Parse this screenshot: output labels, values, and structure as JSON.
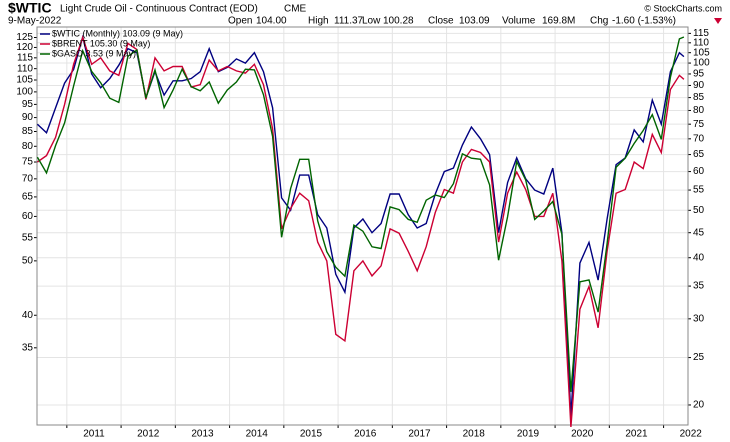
{
  "chart_data": {
    "type": "line",
    "symbol": "$WTIC",
    "title": "Light Crude Oil - Continuous Contract (EOD)",
    "exchange": "CME",
    "date": "9-May-2022",
    "copyright": "© StockCharts.com",
    "quote": [
      {
        "label": "Open",
        "value": "104.00"
      },
      {
        "label": "High",
        "value": "111.37"
      },
      {
        "label": "Low",
        "value": "100.28"
      },
      {
        "label": "Close",
        "value": "103.09"
      },
      {
        "label": "Volume",
        "value": "169.8M"
      },
      {
        "label": "Chg",
        "value": "-1.60 (-1.53%)"
      }
    ],
    "log_scale": true,
    "grid": true,
    "xlim": [
      2010.45,
      2022.45
    ],
    "xticks": [
      2011,
      2012,
      2013,
      2014,
      2015,
      2016,
      2017,
      2018,
      2019,
      2020,
      2021,
      2022
    ],
    "ylim": [
      25.5,
      130.5
    ],
    "yticks": [
      35,
      40,
      50,
      55,
      60,
      65,
      70,
      75,
      80,
      85,
      90,
      95,
      100,
      105,
      110,
      115,
      120,
      125
    ],
    "y2lim": [
      18.2,
      118.5
    ],
    "y2ticks": [
      20,
      25,
      30,
      35,
      40,
      45,
      50,
      55,
      60,
      65,
      70,
      75,
      80,
      85,
      90,
      95,
      100,
      105,
      110,
      115
    ],
    "y3lim": [
      0.63,
      3.69
    ],
    "x": [
      2010.458,
      2010.625,
      2010.792,
      2010.958,
      2011.125,
      2011.292,
      2011.458,
      2011.625,
      2011.792,
      2011.958,
      2012.125,
      2012.292,
      2012.458,
      2012.625,
      2012.792,
      2012.958,
      2013.125,
      2013.292,
      2013.458,
      2013.625,
      2013.792,
      2013.958,
      2014.125,
      2014.292,
      2014.458,
      2014.625,
      2014.792,
      2014.958,
      2015.125,
      2015.292,
      2015.458,
      2015.625,
      2015.792,
      2015.958,
      2016.125,
      2016.292,
      2016.458,
      2016.625,
      2016.792,
      2016.958,
      2017.125,
      2017.292,
      2017.458,
      2017.625,
      2017.792,
      2017.958,
      2018.125,
      2018.292,
      2018.458,
      2018.625,
      2018.792,
      2018.958,
      2019.125,
      2019.292,
      2019.458,
      2019.625,
      2019.792,
      2019.958,
      2020.125,
      2020.292,
      2020.458,
      2020.625,
      2020.792,
      2020.958,
      2021.125,
      2021.292,
      2021.458,
      2021.625,
      2021.792,
      2021.958,
      2022.125,
      2022.292,
      2022.375
    ],
    "series": [
      {
        "name": "$WTIC (Monthly) 103.09 (9 May)",
        "color": "#000080",
        "axis": "y2",
        "values": [
          75,
          72,
          81,
          91,
          97,
          113,
          95,
          89,
          93,
          99,
          107,
          105,
          85,
          96,
          86,
          92,
          92,
          93,
          96,
          107,
          96,
          98,
          102,
          100,
          105,
          96,
          81,
          53,
          50,
          59,
          59,
          49,
          46,
          37,
          34,
          46,
          48,
          45,
          47,
          54,
          54,
          49,
          46,
          47,
          54,
          60,
          61,
          68,
          74,
          70,
          65,
          45,
          57,
          64,
          58,
          55,
          54,
          61,
          45,
          19,
          39,
          43,
          36,
          48,
          62,
          64,
          73,
          69,
          84,
          75,
          96,
          105,
          103.09
        ]
      },
      {
        "name": "$BRENT 105.30 (9 May)",
        "color": "#cc0033",
        "values": [
          75,
          77,
          83,
          95,
          112,
          125,
          112,
          115,
          109,
          107,
          122,
          119,
          97,
          115,
          109,
          111,
          111,
          102,
          103,
          114,
          109,
          111,
          109,
          108,
          112,
          103,
          86,
          57,
          62,
          66,
          64,
          54,
          50,
          37,
          36,
          48,
          50,
          47,
          49,
          57,
          56,
          52,
          48,
          53,
          61,
          67,
          66,
          75,
          79,
          78,
          75,
          54,
          66,
          72,
          67,
          60,
          60,
          66,
          50,
          25.3,
          41,
          45,
          38,
          52,
          66,
          67,
          75,
          73,
          84,
          78,
          101,
          107,
          105.3
        ]
      },
      {
        "name": "$GASO 3.53 (9 May)",
        "color": "#006400",
        "axis": "y3",
        "values": [
          2.07,
          1.93,
          2.18,
          2.41,
          2.84,
          3.32,
          3.03,
          2.88,
          2.69,
          2.64,
          3.24,
          3.33,
          2.69,
          3.05,
          2.58,
          2.79,
          3.06,
          2.83,
          2.78,
          2.89,
          2.63,
          2.79,
          2.89,
          3.06,
          3.05,
          2.73,
          2.27,
          1.45,
          1.8,
          2.05,
          2.05,
          1.56,
          1.36,
          1.27,
          1.22,
          1.53,
          1.49,
          1.39,
          1.38,
          1.66,
          1.64,
          1.57,
          1.55,
          1.71,
          1.75,
          1.73,
          1.84,
          2.1,
          2.06,
          2.05,
          1.83,
          1.31,
          1.59,
          2.03,
          1.87,
          1.57,
          1.63,
          1.7,
          1.47,
          0.73,
          1.19,
          1.2,
          1.04,
          1.41,
          1.98,
          2.06,
          2.2,
          2.33,
          2.5,
          2.24,
          2.95,
          3.5,
          3.53
        ]
      }
    ]
  }
}
